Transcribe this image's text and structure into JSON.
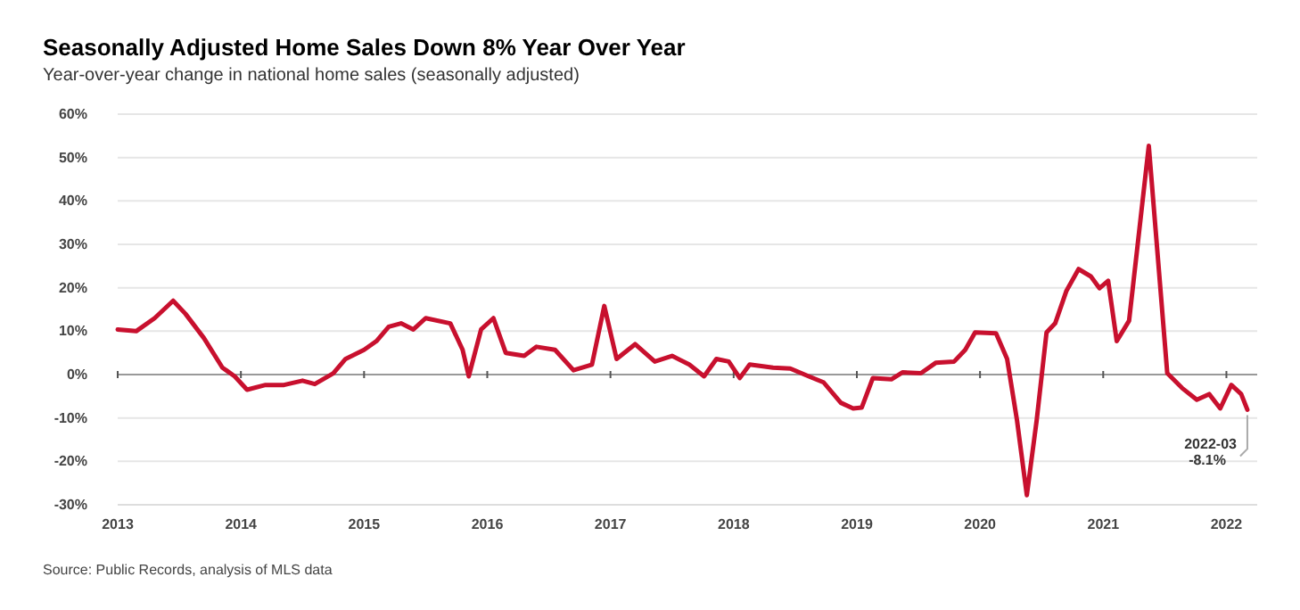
{
  "chart_data": {
    "type": "line",
    "title": "Seasonally Adjusted Home Sales Down 8% Year Over Year",
    "subtitle": "Year-over-year change in national home sales (seasonally adjusted)",
    "x": [
      2013.0,
      2013.15,
      2013.3,
      2013.45,
      2013.55,
      2013.7,
      2013.85,
      2013.95,
      2014.05,
      2014.2,
      2014.35,
      2014.5,
      2014.6,
      2014.75,
      2014.85,
      2015.0,
      2015.1,
      2015.2,
      2015.3,
      2015.4,
      2015.5,
      2015.7,
      2015.8,
      2015.85,
      2015.95,
      2016.05,
      2016.15,
      2016.3,
      2016.4,
      2016.55,
      2016.7,
      2016.85,
      2016.95,
      2017.05,
      2017.2,
      2017.36,
      2017.5,
      2017.64,
      2017.76,
      2017.86,
      2017.96,
      2018.05,
      2018.13,
      2018.32,
      2018.46,
      2018.61,
      2018.73,
      2018.87,
      2018.97,
      2019.04,
      2019.13,
      2019.28,
      2019.37,
      2019.52,
      2019.64,
      2019.79,
      2019.88,
      2019.96,
      2020.13,
      2020.22,
      2020.3,
      2020.38,
      2020.46,
      2020.54,
      2020.61,
      2020.7,
      2020.8,
      2020.9,
      2020.97,
      2021.04,
      2021.11,
      2021.21,
      2021.37,
      2021.52,
      2021.64,
      2021.76,
      2021.86,
      2021.95,
      2022.04,
      2022.12,
      2022.17
    ],
    "series": [
      {
        "color": "#c8102e",
        "values": [
          10.4,
          10,
          13,
          17,
          14,
          8.4,
          1.6,
          -0.4,
          -3.5,
          -2.4,
          -2.4,
          -1.4,
          -2.2,
          0.3,
          3.6,
          5.7,
          7.7,
          11,
          11.8,
          10.4,
          13,
          11.8,
          5.7,
          -0.4,
          10.4,
          13,
          5,
          4.3,
          6.4,
          5.7,
          1,
          2.3,
          15.8,
          3.6,
          7,
          3,
          4.3,
          2.3,
          -0.4,
          3.6,
          3,
          -0.8,
          2.3,
          1.6,
          1.4,
          -0.4,
          -1.8,
          -6.5,
          -7.8,
          -7.6,
          -0.8,
          -1.1,
          0.5,
          0.3,
          2.7,
          3,
          5.7,
          9.7,
          9.5,
          3.6,
          -10.5,
          -27.8,
          -10.5,
          9.7,
          11.8,
          19.2,
          24.3,
          22.6,
          19.9,
          21.6,
          7.7,
          12.4,
          52.7,
          0.3,
          -3.1,
          -5.8,
          -4.5,
          -7.8,
          -2.4,
          -4.5,
          -8.1
        ]
      }
    ],
    "xlim": [
      2013,
      2022.25
    ],
    "xticks": [
      2013,
      2014,
      2015,
      2016,
      2017,
      2018,
      2019,
      2020,
      2021,
      2022
    ],
    "ylim": [
      -30,
      60
    ],
    "yticks": [
      {
        "value": -30,
        "label": "-30%"
      },
      {
        "value": -20,
        "label": "-20%"
      },
      {
        "value": -10,
        "label": "-10%"
      },
      {
        "value": 0,
        "label": "0%"
      },
      {
        "value": 10,
        "label": "10%"
      },
      {
        "value": 20,
        "label": "20%"
      },
      {
        "value": 30,
        "label": "30%"
      },
      {
        "value": 40,
        "label": "40%"
      },
      {
        "value": 50,
        "label": "50%"
      },
      {
        "value": 60,
        "label": "60%"
      }
    ],
    "grid": "y",
    "marker": "none",
    "line_style": "solid",
    "annotations": [
      {
        "text": "2022-03\n-8.1%",
        "x": 2022.17,
        "y": -8.1
      },
      "Source: Public Records, analysis of MLS data"
    ]
  }
}
